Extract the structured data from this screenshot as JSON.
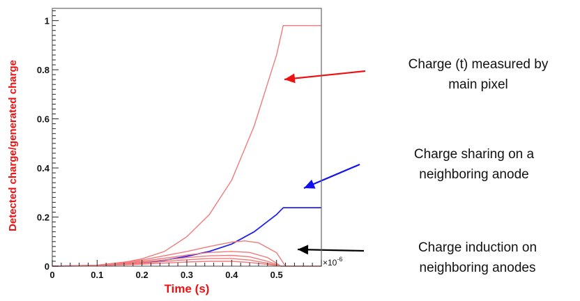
{
  "chart_data": {
    "type": "line",
    "title": "",
    "xlabel": "Time (s)",
    "ylabel": "Detected charge/generated charge",
    "x_multiplier_label": "×10",
    "x_multiplier_exp": "-6",
    "xlim": [
      0,
      0.6
    ],
    "ylim": [
      0,
      1.05
    ],
    "x_ticks": [
      0,
      0.1,
      0.2,
      0.3,
      0.4,
      0.5
    ],
    "x_tick_labels": [
      "0",
      "0.1",
      "0.2",
      "0.3",
      "0.4",
      "0.5"
    ],
    "y_ticks": [
      0,
      0.2,
      0.4,
      0.6,
      0.8,
      1
    ],
    "y_tick_labels": [
      "0",
      "0.2",
      "0.4",
      "0.6",
      "0.8",
      "1"
    ],
    "grid": false,
    "colors": {
      "main": "#f27a7a",
      "sharing": "#2222ee",
      "neighbors": "#f27a7a",
      "axis_label": "#ee1111",
      "arrow_main": "#ee1111",
      "arrow_sharing": "#1111ee",
      "arrow_neighbors": "#000000"
    },
    "series": [
      {
        "role": "main",
        "x": [
          0,
          0.1,
          0.15,
          0.2,
          0.25,
          0.3,
          0.35,
          0.4,
          0.45,
          0.5,
          0.515,
          0.6
        ],
        "y": [
          0,
          0.003,
          0.012,
          0.03,
          0.06,
          0.12,
          0.21,
          0.35,
          0.57,
          0.86,
          0.98,
          0.98
        ]
      },
      {
        "role": "sharing",
        "x": [
          0,
          0.1,
          0.15,
          0.2,
          0.25,
          0.3,
          0.35,
          0.4,
          0.45,
          0.5,
          0.515,
          0.6
        ],
        "y": [
          0,
          0.002,
          0.006,
          0.014,
          0.024,
          0.04,
          0.06,
          0.09,
          0.14,
          0.21,
          0.238,
          0.238
        ]
      },
      {
        "role": "neighbor",
        "x": [
          0,
          0.1,
          0.2,
          0.3,
          0.35,
          0.4,
          0.43,
          0.46,
          0.5,
          0.52,
          0.6
        ],
        "y": [
          0,
          0.004,
          0.025,
          0.06,
          0.08,
          0.098,
          0.103,
          0.095,
          0.055,
          0,
          0
        ]
      },
      {
        "role": "neighbor",
        "x": [
          0,
          0.1,
          0.2,
          0.3,
          0.35,
          0.4,
          0.44,
          0.48,
          0.51,
          0.6
        ],
        "y": [
          0,
          0.004,
          0.02,
          0.045,
          0.056,
          0.06,
          0.056,
          0.035,
          0,
          0
        ]
      },
      {
        "role": "neighbor",
        "x": [
          0,
          0.1,
          0.2,
          0.3,
          0.35,
          0.4,
          0.44,
          0.48,
          0.51,
          0.6
        ],
        "y": [
          0,
          0.003,
          0.016,
          0.035,
          0.042,
          0.044,
          0.038,
          0.02,
          0,
          0
        ]
      },
      {
        "role": "neighbor",
        "x": [
          0,
          0.1,
          0.2,
          0.3,
          0.35,
          0.4,
          0.44,
          0.48,
          0.51,
          0.6
        ],
        "y": [
          0,
          0.002,
          0.012,
          0.026,
          0.031,
          0.031,
          0.025,
          0.012,
          0,
          0
        ]
      },
      {
        "role": "neighbor",
        "x": [
          0,
          0.1,
          0.2,
          0.3,
          0.35,
          0.4,
          0.44,
          0.48,
          0.51,
          0.6
        ],
        "y": [
          0,
          0.002,
          0.008,
          0.017,
          0.02,
          0.02,
          0.015,
          0.007,
          0,
          0
        ]
      }
    ],
    "annotations": [
      {
        "id": "main",
        "line1": "Charge (t) measured by",
        "line2": "main pixel"
      },
      {
        "id": "sharing",
        "line1": "Charge sharing on a",
        "line2": "neighboring anode"
      },
      {
        "id": "neighbors",
        "line1": "Charge induction on",
        "line2": "neighboring anodes"
      }
    ]
  }
}
